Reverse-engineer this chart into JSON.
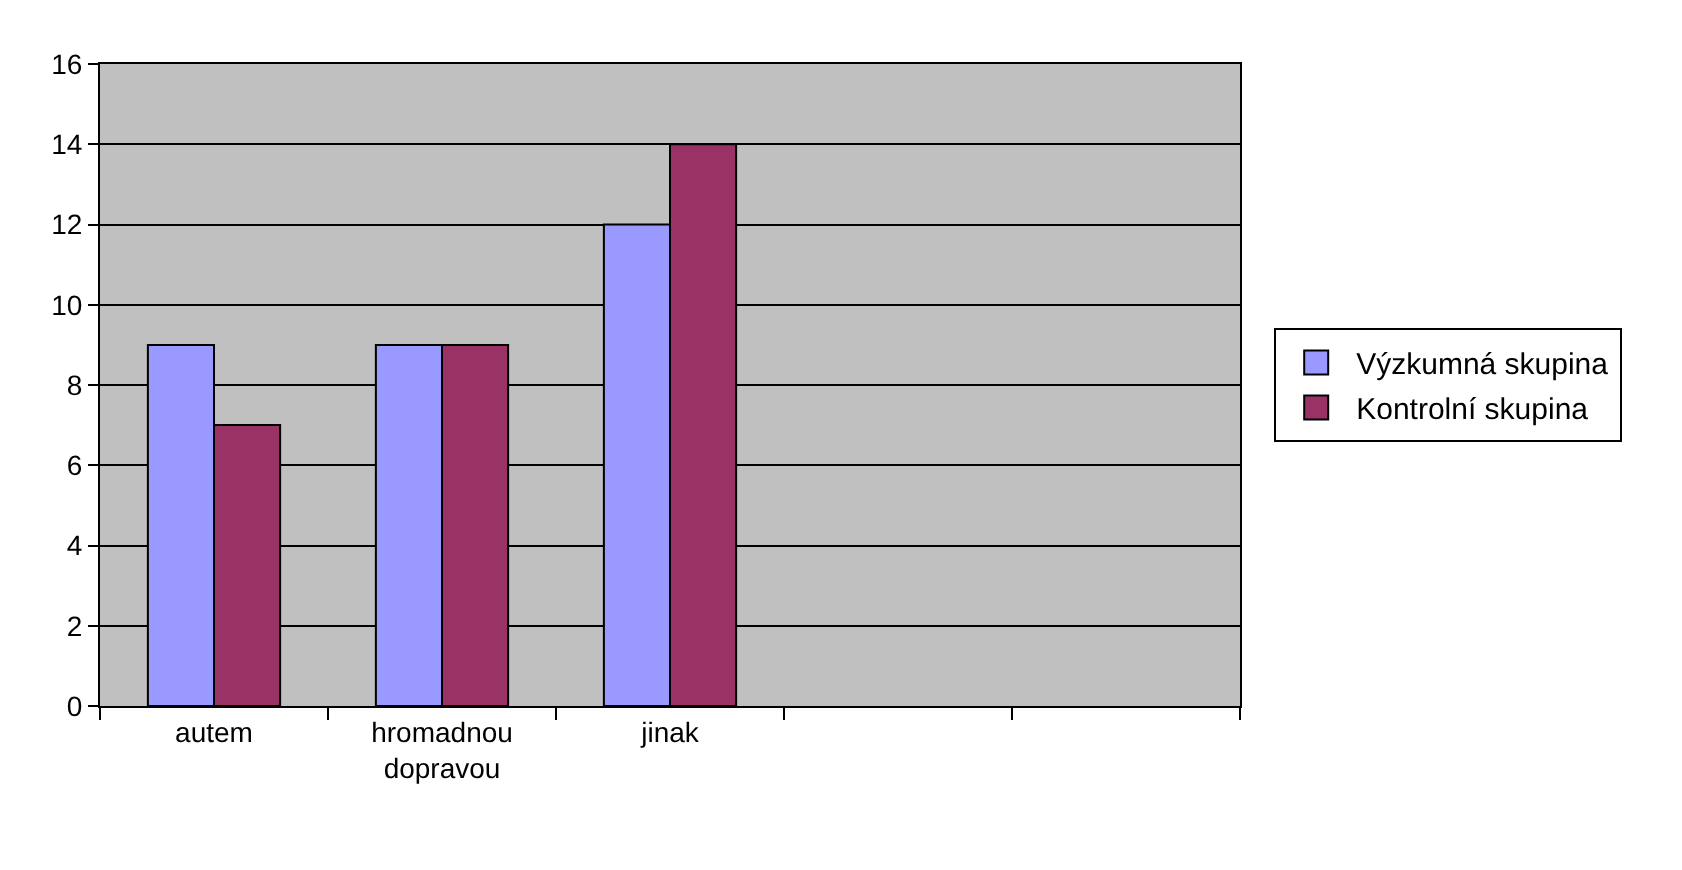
{
  "chart_data": {
    "type": "bar",
    "categories": [
      "autem",
      "hromadnou dopravou",
      "jinak",
      null,
      null
    ],
    "series": [
      {
        "name": "Výzkumná skupina",
        "color": "#9999ff",
        "values": [
          9,
          9,
          12,
          null,
          null
        ]
      },
      {
        "name": "Kontrolní skupina",
        "color": "#993366",
        "values": [
          7,
          9,
          14,
          null,
          null
        ]
      }
    ],
    "ylim": [
      0,
      16
    ],
    "yticks": [
      0,
      2,
      4,
      6,
      8,
      10,
      12,
      14,
      16
    ],
    "grid": "y",
    "legend": "right"
  }
}
